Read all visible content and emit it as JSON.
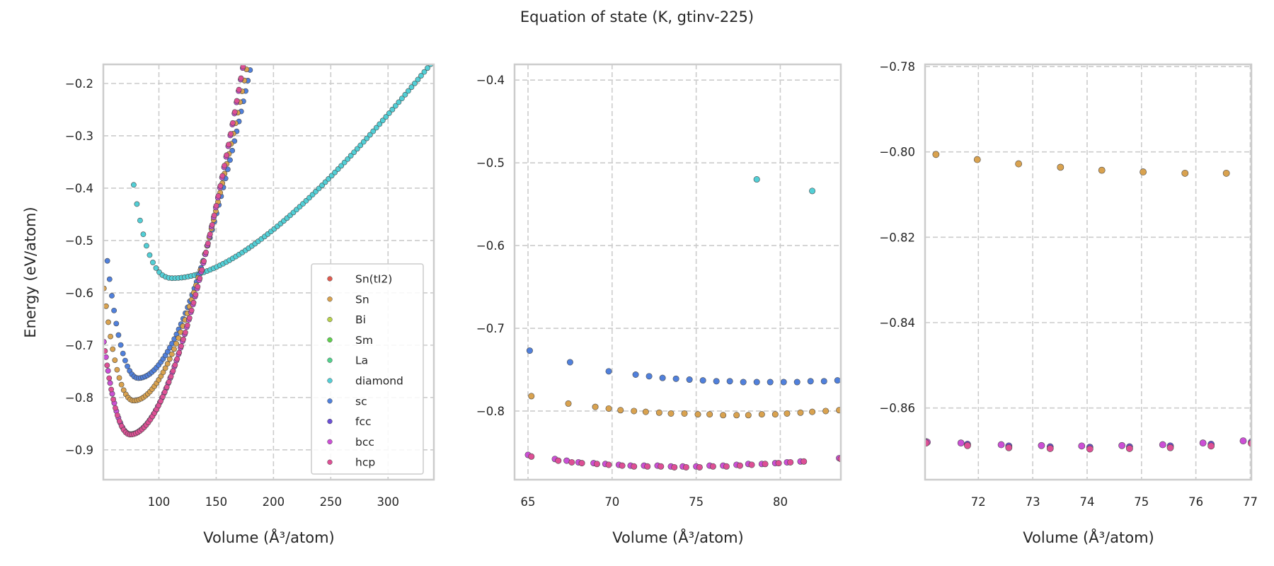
{
  "title": "Equation of state (K, gtinv-225)",
  "colors": {
    "Sn(tI2)": "#e05a4e",
    "Sn": "#d9a24f",
    "Bi": "#b7d14c",
    "Sm": "#5fd14e",
    "La": "#52d28c",
    "diamond": "#52cfd6",
    "sc": "#5080dc",
    "fcc": "#6a4fd6",
    "bcc": "#cc4fd6",
    "hcp": "#de4f95",
    "grid": "#cccccc",
    "spine": "#cccccc"
  },
  "chart_data": [
    {
      "type": "scatter",
      "panel": "full-range",
      "xlabel": "Volume (Å³/atom)",
      "ylabel": "Energy (eV/atom)",
      "xlim": [
        51.5,
        340
      ],
      "ylim": [
        -0.957,
        -0.1635
      ],
      "xticks": [
        100,
        150,
        200,
        250,
        300
      ],
      "yticks": [
        -0.9,
        -0.8,
        -0.7,
        -0.6,
        -0.5,
        -0.4,
        -0.3,
        -0.2
      ],
      "ytick_labels": [
        "−0.9",
        "−0.8",
        "−0.7",
        "−0.6",
        "−0.5",
        "−0.4",
        "−0.3",
        "−0.2"
      ],
      "grid": true,
      "legend": {
        "position": "lower-right",
        "entries": [
          "Sn(tI2)",
          "Sn",
          "Bi",
          "Sm",
          "La",
          "diamond",
          "sc",
          "fcc",
          "bcc",
          "hcp"
        ]
      },
      "curves": [
        {
          "name": "diamond",
          "v0": 112,
          "e0": -0.572,
          "b": 1.75e-05,
          "vmin": 78,
          "vmax": 340,
          "n": 95,
          "tail": 0.00085
        },
        {
          "name": "sc",
          "v0": 82,
          "e0": -0.763,
          "b": 8.5e-05,
          "vmin": 55,
          "vmax": 238,
          "n": 95,
          "tail": 0.0
        },
        {
          "name": "Sn",
          "v0": 78,
          "e0": -0.806,
          "b": 9e-05,
          "vmin": 52,
          "vmax": 232,
          "n": 95,
          "tail": 0.0
        },
        {
          "name": "fcc",
          "v0": 75,
          "e0": -0.87,
          "b": 0.0001,
          "vmin": 52,
          "vmax": 222,
          "n": 95,
          "tail": 0.0
        },
        {
          "name": "bcc",
          "v0": 75,
          "e0": -0.87,
          "b": 0.0001,
          "vmin": 52,
          "vmax": 222,
          "n": 95,
          "tail": 0.0
        },
        {
          "name": "hcp",
          "v0": 75,
          "e0": -0.871,
          "b": 0.0001,
          "vmin": 53,
          "vmax": 222,
          "n": 95,
          "tail": 0.0
        }
      ]
    },
    {
      "type": "scatter",
      "panel": "zoom-1",
      "xlabel": "Volume (Å³/atom)",
      "ylabel": "",
      "xlim": [
        64.2,
        83.6
      ],
      "ylim": [
        -0.883,
        -0.381
      ],
      "xticks": [
        65,
        70,
        75,
        80
      ],
      "yticks": [
        -0.8,
        -0.7,
        -0.6,
        -0.5,
        -0.4
      ],
      "ytick_labels": [
        "−0.8",
        "−0.7",
        "−0.6",
        "−0.5",
        "−0.4"
      ],
      "grid": true,
      "series": [
        {
          "name": "diamond",
          "x": [
            78.6,
            81.9
          ],
          "y": [
            -0.52,
            -0.534
          ]
        },
        {
          "name": "sc",
          "x": [
            65.1,
            67.5,
            69.8,
            71.4,
            72.2,
            73.0,
            73.8,
            74.6,
            75.4,
            76.2,
            77.0,
            77.8,
            78.6,
            79.4,
            80.2,
            81.0,
            81.8,
            82.6,
            83.4
          ],
          "y": [
            -0.727,
            -0.741,
            -0.752,
            -0.756,
            -0.758,
            -0.76,
            -0.761,
            -0.762,
            -0.763,
            -0.764,
            -0.764,
            -0.765,
            -0.765,
            -0.765,
            -0.765,
            -0.765,
            -0.764,
            -0.764,
            -0.763
          ]
        },
        {
          "name": "Sn",
          "x": [
            65.2,
            67.4,
            69.0,
            69.8,
            70.5,
            71.3,
            72.0,
            72.8,
            73.5,
            74.3,
            75.1,
            75.8,
            76.6,
            77.4,
            78.1,
            78.9,
            79.7,
            80.4,
            81.2,
            81.9,
            82.7,
            83.5
          ],
          "y": [
            -0.782,
            -0.791,
            -0.795,
            -0.797,
            -0.799,
            -0.8,
            -0.801,
            -0.802,
            -0.803,
            -0.803,
            -0.804,
            -0.804,
            -0.805,
            -0.805,
            -0.805,
            -0.804,
            -0.804,
            -0.803,
            -0.802,
            -0.801,
            -0.8,
            -0.799
          ]
        },
        {
          "name": "bcc",
          "x": [
            65.0,
            66.6,
            67.3,
            68.0,
            68.9,
            69.6,
            70.4,
            71.1,
            71.9,
            72.7,
            73.5,
            74.2,
            75.0,
            75.8,
            76.6,
            77.4,
            78.1,
            78.9,
            79.7,
            80.4,
            81.2,
            83.5
          ],
          "y": [
            -0.853,
            -0.858,
            -0.86,
            -0.862,
            -0.863,
            -0.864,
            -0.865,
            -0.866,
            -0.866,
            -0.866,
            -0.867,
            -0.867,
            -0.867,
            -0.866,
            -0.866,
            -0.865,
            -0.864,
            -0.864,
            -0.863,
            -0.862,
            -0.861,
            -0.857
          ]
        },
        {
          "name": "hcp",
          "x": [
            65.2,
            66.8,
            67.6,
            68.2,
            69.1,
            69.8,
            70.6,
            71.3,
            72.1,
            72.9,
            73.7,
            74.4,
            75.2,
            76.0,
            76.8,
            77.6,
            78.3,
            79.1,
            79.9,
            80.6,
            81.4,
            83.6
          ],
          "y": [
            -0.855,
            -0.86,
            -0.862,
            -0.863,
            -0.864,
            -0.865,
            -0.866,
            -0.867,
            -0.867,
            -0.867,
            -0.868,
            -0.868,
            -0.868,
            -0.867,
            -0.867,
            -0.866,
            -0.865,
            -0.864,
            -0.863,
            -0.862,
            -0.861,
            -0.858
          ]
        }
      ]
    },
    {
      "type": "scatter",
      "panel": "zoom-2",
      "xlabel": "Volume (Å³/atom)",
      "ylabel": "",
      "xlim": [
        71.02,
        77.02
      ],
      "ylim": [
        -0.8768,
        -0.7795
      ],
      "xticks": [
        72,
        73,
        74,
        75,
        76,
        77
      ],
      "yticks": [
        -0.86,
        -0.84,
        -0.82,
        -0.8,
        -0.78
      ],
      "ytick_labels": [
        "−0.86",
        "−0.84",
        "−0.82",
        "−0.80",
        "−0.78"
      ],
      "grid": true,
      "series": [
        {
          "name": "Sn",
          "x": [
            71.22,
            71.98,
            72.74,
            73.51,
            74.27,
            75.03,
            75.8,
            76.56
          ],
          "y": [
            -0.8006,
            -0.8018,
            -0.8028,
            -0.8036,
            -0.8043,
            -0.8047,
            -0.805,
            -0.805
          ]
        },
        {
          "name": "fcc",
          "x": [
            71.04,
            71.8,
            72.56,
            73.32,
            74.05,
            74.78,
            75.53,
            76.28,
            77.02
          ],
          "y": [
            -0.8679,
            -0.8685,
            -0.8689,
            -0.8691,
            -0.8692,
            -0.8691,
            -0.8689,
            -0.8685,
            -0.868
          ]
        },
        {
          "name": "bcc",
          "x": [
            71.06,
            71.68,
            72.42,
            73.16,
            73.9,
            74.64,
            75.39,
            76.13,
            76.87
          ],
          "y": [
            -0.868,
            -0.8682,
            -0.8686,
            -0.8688,
            -0.8689,
            -0.8688,
            -0.8686,
            -0.8682,
            -0.8677
          ]
        },
        {
          "name": "hcp",
          "x": [
            71.04,
            71.8,
            72.56,
            73.32,
            74.05,
            74.78,
            75.53,
            76.28,
            77.02
          ],
          "y": [
            -0.8682,
            -0.8688,
            -0.8693,
            -0.8695,
            -0.8696,
            -0.8695,
            -0.8693,
            -0.8689,
            -0.8683
          ]
        }
      ]
    }
  ]
}
